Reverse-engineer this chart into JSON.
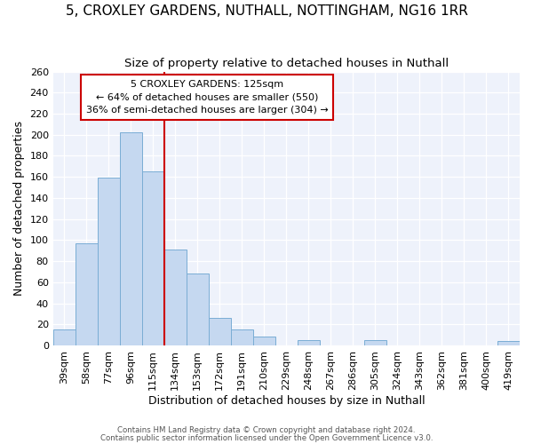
{
  "title": "5, CROXLEY GARDENS, NUTHALL, NOTTINGHAM, NG16 1RR",
  "subtitle": "Size of property relative to detached houses in Nuthall",
  "xlabel": "Distribution of detached houses by size in Nuthall",
  "ylabel": "Number of detached properties",
  "bins": [
    "39sqm",
    "58sqm",
    "77sqm",
    "96sqm",
    "115sqm",
    "134sqm",
    "153sqm",
    "172sqm",
    "191sqm",
    "210sqm",
    "229sqm",
    "248sqm",
    "267sqm",
    "286sqm",
    "305sqm",
    "324sqm",
    "343sqm",
    "362sqm",
    "381sqm",
    "400sqm",
    "419sqm"
  ],
  "values": [
    15,
    97,
    159,
    202,
    165,
    91,
    68,
    26,
    15,
    8,
    0,
    5,
    0,
    0,
    5,
    0,
    0,
    0,
    0,
    0,
    4
  ],
  "bar_color": "#c5d8f0",
  "bar_edge_color": "#7aadd4",
  "vline_color": "#cc0000",
  "vline_x_index": 5,
  "annotation_text": "5 CROXLEY GARDENS: 125sqm\n← 64% of detached houses are smaller (550)\n36% of semi-detached houses are larger (304) →",
  "footer1": "Contains HM Land Registry data © Crown copyright and database right 2024.",
  "footer2": "Contains public sector information licensed under the Open Government Licence v3.0.",
  "ylim": [
    0,
    260
  ],
  "yticks": [
    0,
    20,
    40,
    60,
    80,
    100,
    120,
    140,
    160,
    180,
    200,
    220,
    240,
    260
  ],
  "bg_color": "#eef2fb",
  "title_fontsize": 11,
  "subtitle_fontsize": 9.5,
  "xlabel_fontsize": 9,
  "ylabel_fontsize": 9,
  "tick_fontsize": 8
}
